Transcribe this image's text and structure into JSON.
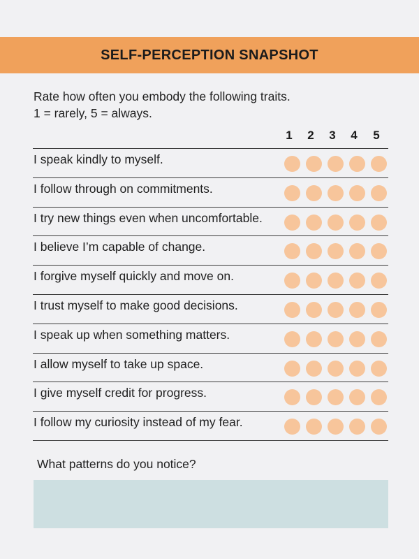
{
  "header": {
    "title": "SELF-PERCEPTION SNAPSHOT",
    "band_color": "#f0a15b"
  },
  "instructions": {
    "line1": "Rate how often you embody the following traits.",
    "line2": "1 = rarely,  5 = always."
  },
  "scale": {
    "labels": [
      "1",
      "2",
      "3",
      "4",
      "5"
    ]
  },
  "items": [
    {
      "label": "I speak kindly to myself."
    },
    {
      "label": "I follow through on commitments."
    },
    {
      "label": "I try new things even when uncomfortable."
    },
    {
      "label": "I believe I’m capable of change."
    },
    {
      "label": "I forgive myself quickly and move on."
    },
    {
      "label": "I trust myself to make good decisions."
    },
    {
      "label": "I speak up when something matters."
    },
    {
      "label": "I allow myself to take up space."
    },
    {
      "label": "I give myself credit for progress."
    },
    {
      "label": "I follow my curiosity instead of my fear."
    }
  ],
  "colors": {
    "dot": "#f7c59b",
    "notes_box": "#cddfe1"
  },
  "reflection": {
    "prompt": "What patterns do you notice?",
    "value": ""
  }
}
